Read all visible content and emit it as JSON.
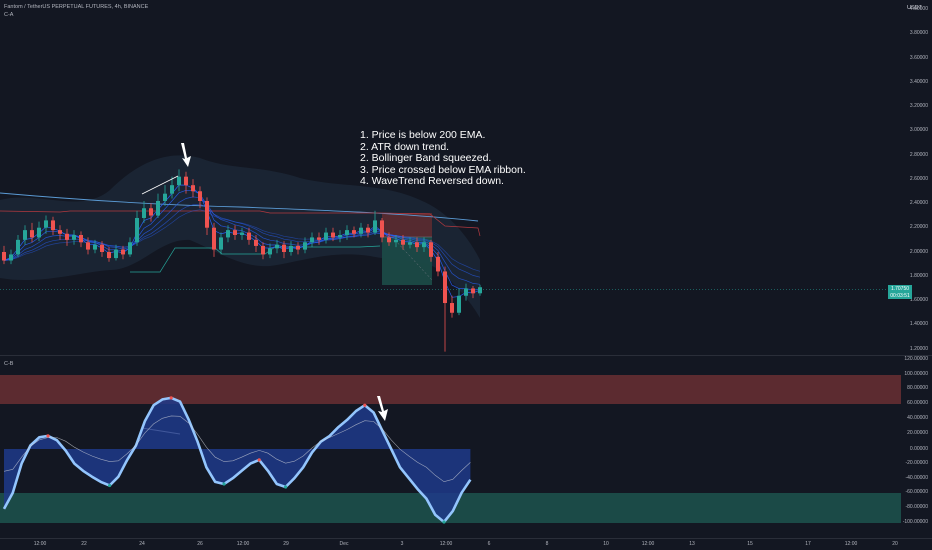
{
  "header": {
    "symbol_line": "Fantom / TetherUS PERPETUAL FUTURES, 4h, BINANCE",
    "indicator_a": "C-A",
    "indicator_b": "C-B",
    "currency": "USDT"
  },
  "annotation": {
    "lines": [
      "1. Price is below 200 EMA.",
      "2. ATR down trend.",
      "2. Bollinger Band squeezed.",
      "3. Price crossed below EMA ribbon.",
      "4. WaveTrend Reversed down."
    ]
  },
  "price_axis": {
    "labels": [
      "4.00000",
      "3.80000",
      "3.60000",
      "3.40000",
      "3.20000",
      "3.00000",
      "2.80000",
      "2.60000",
      "2.40000",
      "2.20000",
      "2.00000",
      "1.80000",
      "1.60000",
      "1.40000",
      "1.20000"
    ],
    "current_price": "1.70750",
    "countdown": "00:03:51"
  },
  "osc_axis": {
    "labels": [
      "120.00000",
      "100.00000",
      "80.00000",
      "60.00000",
      "40.00000",
      "20.00000",
      "0.00000",
      "-20.00000",
      "-40.00000",
      "-60.00000",
      "-80.00000",
      "-100.00000"
    ]
  },
  "time_axis": {
    "labels": [
      "12:00",
      "22",
      "24",
      "26",
      "12:00",
      "29",
      "Dec",
      "3",
      "12:00",
      "6",
      "8",
      "10",
      "12:00",
      "13",
      "15",
      "17",
      "12:00",
      "20"
    ]
  },
  "colors": {
    "background": "#131722",
    "bull": "#26a69a",
    "bear": "#ef5350",
    "ema_ribbon": "#2962ff",
    "wave_fill": "#1e3a8a",
    "overbought_zone": "#5c2b30",
    "oversold_zone": "#1b4a47"
  },
  "chart_data": {
    "type": "candlestick",
    "symbol": "Fantom / TetherUS PERPETUAL FUTURES",
    "interval": "4h",
    "exchange": "BINANCE",
    "ylim": [
      1.1,
      4.0
    ],
    "last_price": 1.7075,
    "candles": [
      [
        2.0,
        1.93,
        2.05,
        1.9
      ],
      [
        1.93,
        1.98,
        2.02,
        1.9
      ],
      [
        1.98,
        2.1,
        2.14,
        1.96
      ],
      [
        2.1,
        2.18,
        2.22,
        2.06
      ],
      [
        2.18,
        2.12,
        2.24,
        2.08
      ],
      [
        2.12,
        2.2,
        2.25,
        2.09
      ],
      [
        2.2,
        2.26,
        2.3,
        2.15
      ],
      [
        2.26,
        2.18,
        2.29,
        2.14
      ],
      [
        2.18,
        2.15,
        2.22,
        2.1
      ],
      [
        2.15,
        2.1,
        2.19,
        2.05
      ],
      [
        2.1,
        2.14,
        2.18,
        2.06
      ],
      [
        2.14,
        2.08,
        2.17,
        2.04
      ],
      [
        2.08,
        2.02,
        2.12,
        1.98
      ],
      [
        2.02,
        2.06,
        2.1,
        1.99
      ],
      [
        2.06,
        2.0,
        2.09,
        1.96
      ],
      [
        2.0,
        1.95,
        2.04,
        1.92
      ],
      [
        1.95,
        2.02,
        2.06,
        1.93
      ],
      [
        2.02,
        1.98,
        2.05,
        1.94
      ],
      [
        1.98,
        2.08,
        2.12,
        1.96
      ],
      [
        2.08,
        2.28,
        2.34,
        2.05
      ],
      [
        2.28,
        2.36,
        2.42,
        2.24
      ],
      [
        2.36,
        2.3,
        2.4,
        2.25
      ],
      [
        2.3,
        2.42,
        2.48,
        2.28
      ],
      [
        2.42,
        2.48,
        2.55,
        2.38
      ],
      [
        2.48,
        2.55,
        2.62,
        2.44
      ],
      [
        2.55,
        2.62,
        2.68,
        2.5
      ],
      [
        2.62,
        2.55,
        2.66,
        2.48
      ],
      [
        2.55,
        2.5,
        2.6,
        2.45
      ],
      [
        2.5,
        2.42,
        2.54,
        2.36
      ],
      [
        2.42,
        2.2,
        2.45,
        2.14
      ],
      [
        2.2,
        2.02,
        2.24,
        1.96
      ],
      [
        2.02,
        2.12,
        2.16,
        1.98
      ],
      [
        2.12,
        2.18,
        2.22,
        2.08
      ],
      [
        2.18,
        2.14,
        2.22,
        2.1
      ],
      [
        2.14,
        2.16,
        2.2,
        2.1
      ],
      [
        2.16,
        2.1,
        2.2,
        2.06
      ],
      [
        2.1,
        2.05,
        2.14,
        2.0
      ],
      [
        2.05,
        1.98,
        2.08,
        1.94
      ],
      [
        1.98,
        2.03,
        2.07,
        1.95
      ],
      [
        2.03,
        2.06,
        2.1,
        1.99
      ],
      [
        2.06,
        2.0,
        2.09,
        1.95
      ],
      [
        2.0,
        2.05,
        2.09,
        1.97
      ],
      [
        2.05,
        2.02,
        2.08,
        1.98
      ],
      [
        2.02,
        2.08,
        2.12,
        1.99
      ],
      [
        2.08,
        2.12,
        2.16,
        2.04
      ],
      [
        2.12,
        2.1,
        2.16,
        2.06
      ],
      [
        2.1,
        2.16,
        2.2,
        2.07
      ],
      [
        2.16,
        2.12,
        2.2,
        2.09
      ],
      [
        2.12,
        2.14,
        2.18,
        2.08
      ],
      [
        2.14,
        2.18,
        2.22,
        2.1
      ],
      [
        2.18,
        2.15,
        2.21,
        2.12
      ],
      [
        2.15,
        2.2,
        2.24,
        2.12
      ],
      [
        2.2,
        2.16,
        2.23,
        2.12
      ],
      [
        2.16,
        2.26,
        2.34,
        2.14
      ],
      [
        2.26,
        2.12,
        2.28,
        2.08
      ],
      [
        2.12,
        2.08,
        2.16,
        2.05
      ],
      [
        2.08,
        2.1,
        2.14,
        2.04
      ],
      [
        2.1,
        2.06,
        2.14,
        2.02
      ],
      [
        2.06,
        2.08,
        2.12,
        2.03
      ],
      [
        2.08,
        2.04,
        2.12,
        2.0
      ],
      [
        2.04,
        2.08,
        2.12,
        2.0
      ],
      [
        2.08,
        1.96,
        2.1,
        1.92
      ],
      [
        1.96,
        1.84,
        2.0,
        1.8
      ],
      [
        1.84,
        1.58,
        1.88,
        1.18
      ],
      [
        1.58,
        1.5,
        1.64,
        1.46
      ],
      [
        1.5,
        1.64,
        1.7,
        1.48
      ],
      [
        1.64,
        1.7,
        1.74,
        1.6
      ],
      [
        1.7,
        1.66,
        1.72,
        1.62
      ],
      [
        1.66,
        1.71,
        1.73,
        1.64
      ]
    ]
  }
}
